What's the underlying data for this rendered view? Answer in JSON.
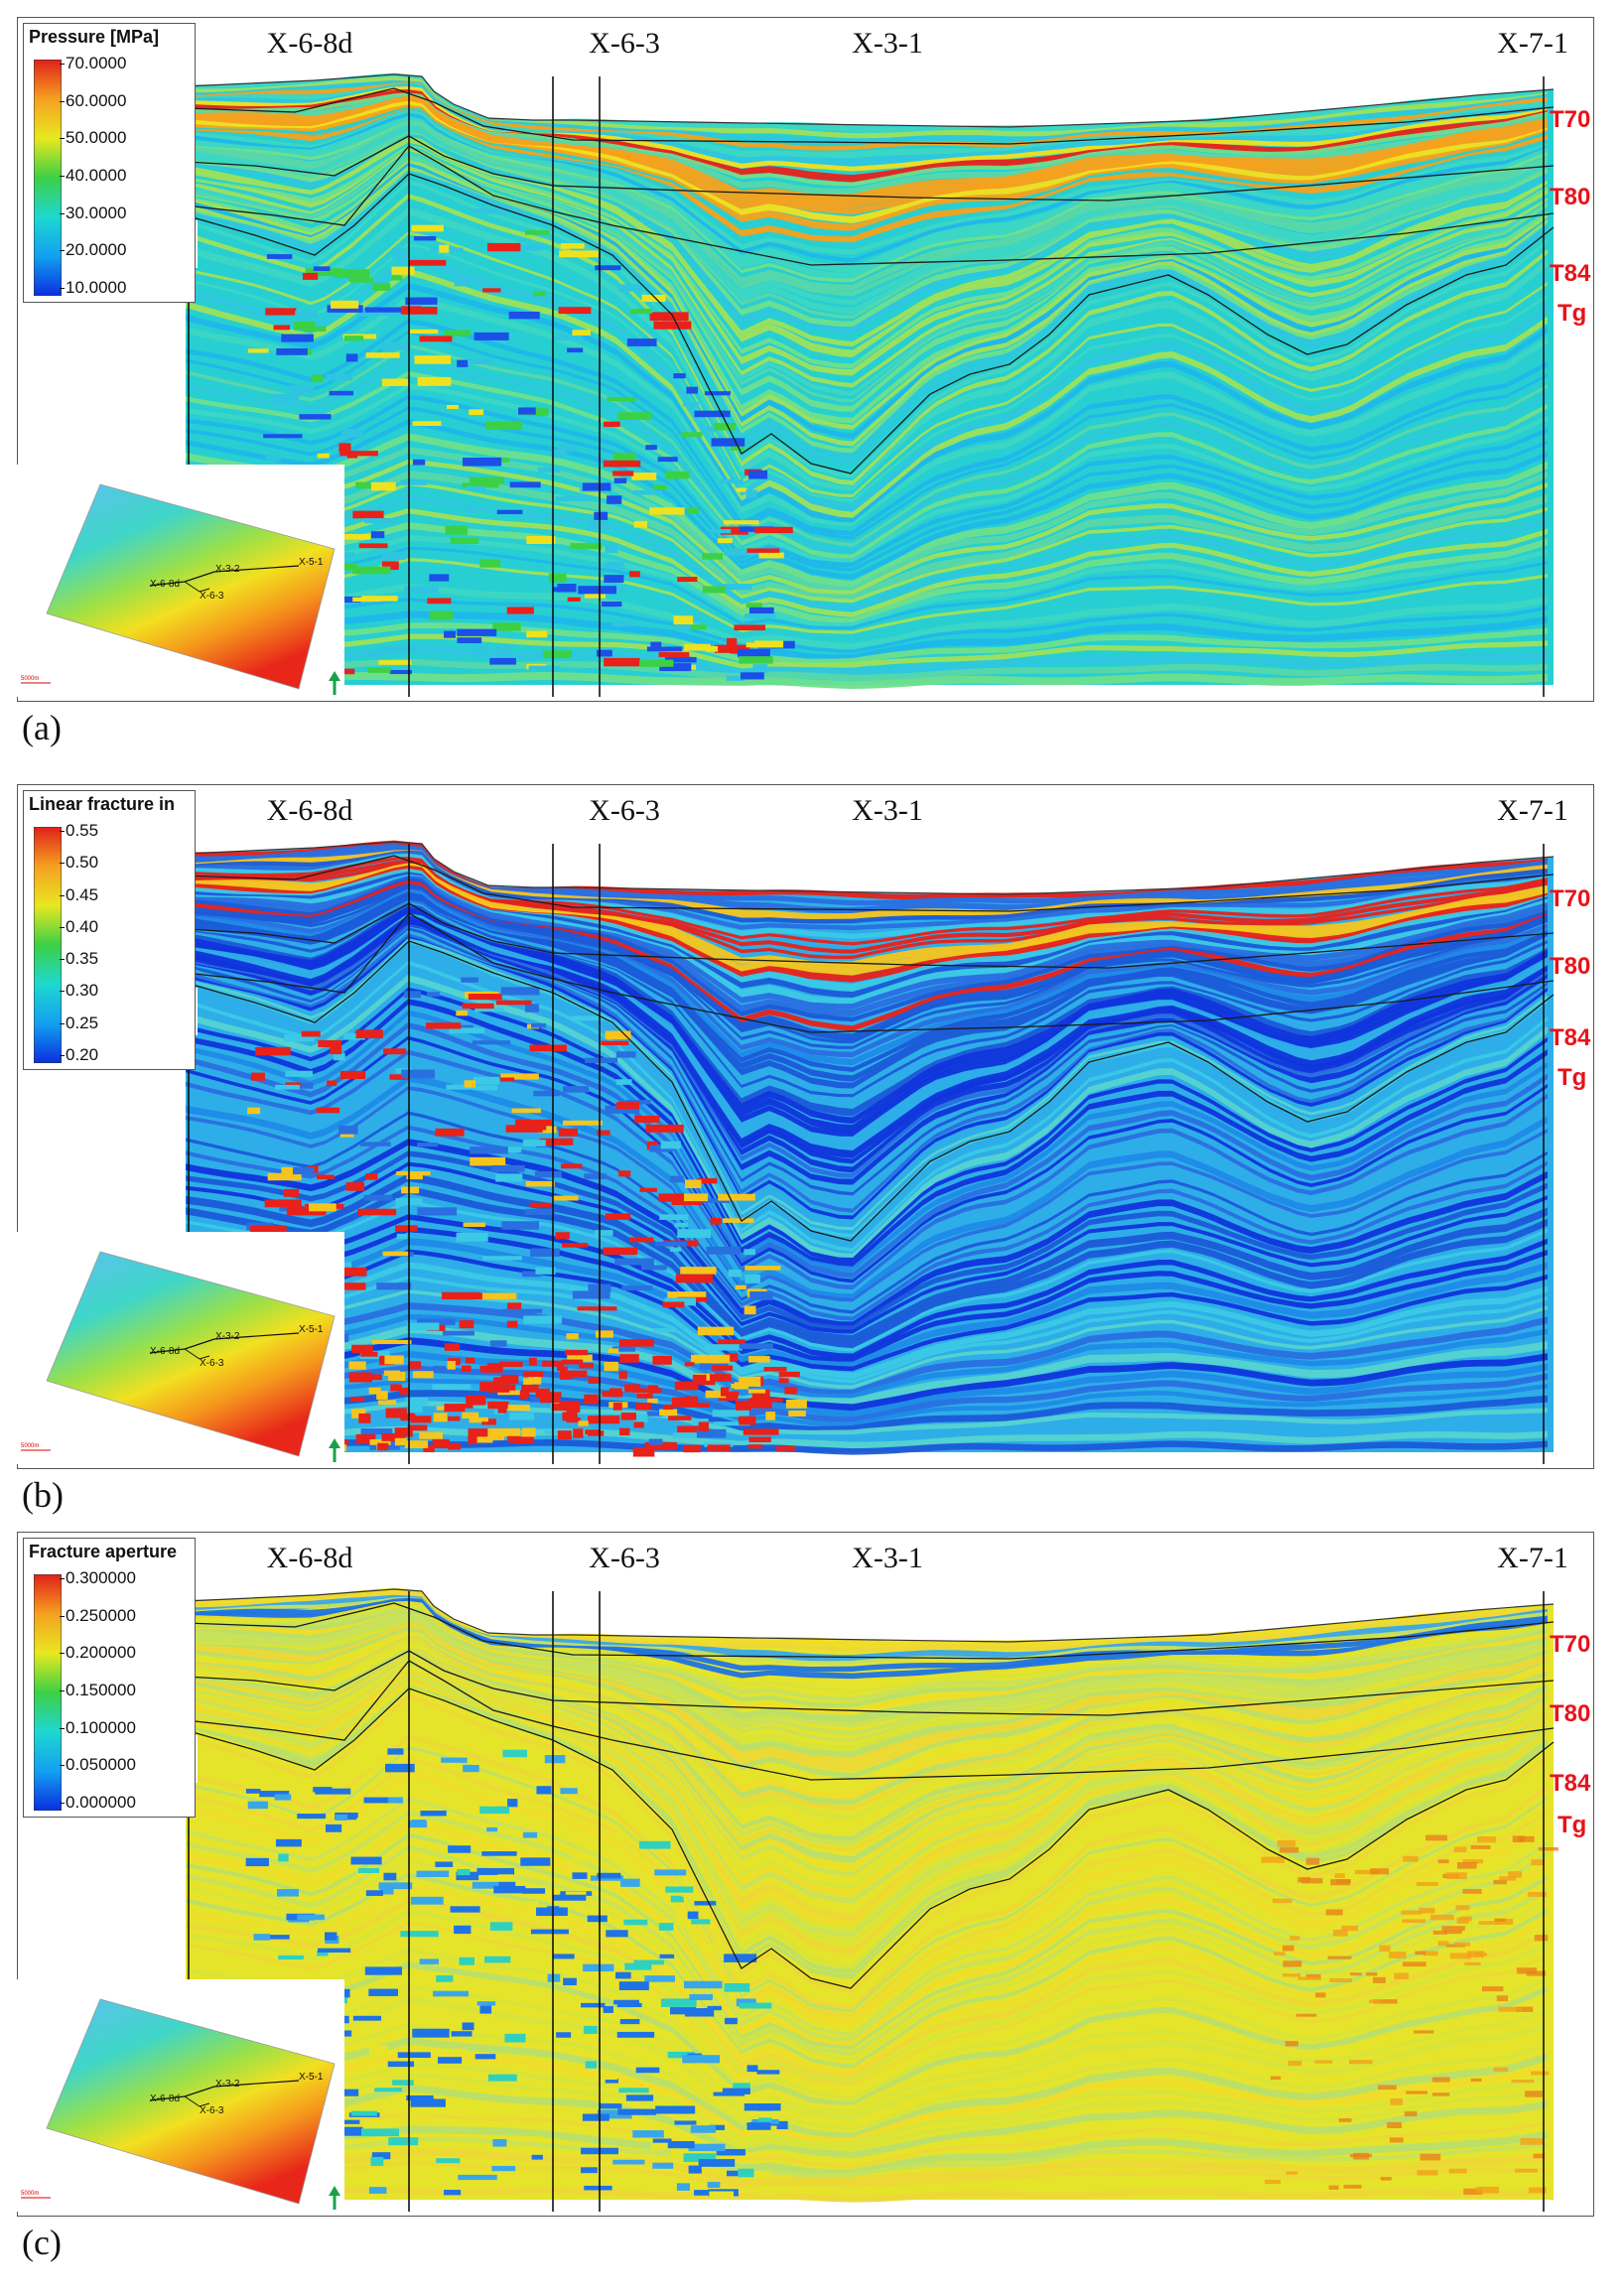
{
  "panels": [
    {
      "letter": "(a)",
      "legend": {
        "title": "Pressure [MPa]",
        "ticks": [
          "70.0000",
          "60.0000",
          "50.0000",
          "40.0000",
          "30.0000",
          "20.0000",
          "10.0000"
        ],
        "colors": [
          "#0a2ee0",
          "#12a0f0",
          "#1ed8d0",
          "#3cd045",
          "#e8e820",
          "#f5a020",
          "#e0201a"
        ]
      },
      "style": "pressure"
    },
    {
      "letter": "(b)",
      "legend": {
        "title": "Linear fracture in",
        "ticks": [
          "0.55",
          "0.50",
          "0.45",
          "0.40",
          "0.35",
          "0.30",
          "0.25",
          "0.20"
        ],
        "colors": [
          "#0a2ee0",
          "#12a0f0",
          "#1ed8d0",
          "#3cd045",
          "#e8e820",
          "#f5a020",
          "#e0201a"
        ]
      },
      "style": "fracture"
    },
    {
      "letter": "(c)",
      "legend": {
        "title": "Fracture aperture",
        "ticks": [
          "0.300000",
          "0.250000",
          "0.200000",
          "0.150000",
          "0.100000",
          "0.050000",
          "0.000000"
        ],
        "colors": [
          "#0a2ee0",
          "#12a0f0",
          "#1ed8d0",
          "#3cd045",
          "#e8e820",
          "#f5a020",
          "#e0201a"
        ]
      },
      "style": "aperture"
    }
  ],
  "wells": [
    "X-6-8d",
    "X-6-3",
    "X-3-1",
    "X-7-1"
  ],
  "horizons": [
    "T70",
    "T80",
    "T84",
    "Tg"
  ],
  "inset_map": {
    "well_labels": [
      "X-3-2",
      "X-5-1",
      "X-6-8d",
      "X-6-3"
    ],
    "scale_text": "5000m"
  }
}
